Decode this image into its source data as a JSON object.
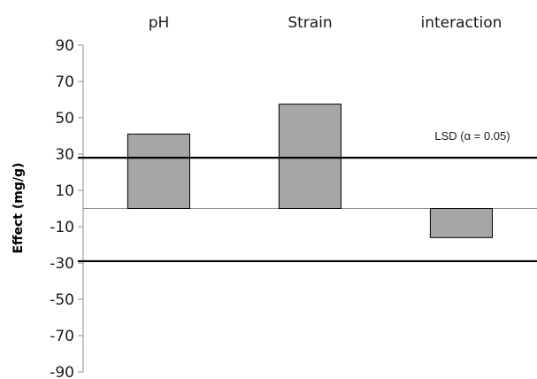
{
  "chart_data": {
    "type": "bar",
    "categories": [
      "pH",
      "Strain",
      "interaction"
    ],
    "values": [
      41,
      57.5,
      -16
    ],
    "ylabel": "Effect (mg/g)",
    "ylim": [
      -90,
      90
    ],
    "yticks": [
      "90",
      "70",
      "50",
      "30",
      "10",
      "-10",
      "-30",
      "-50",
      "-70",
      "-90"
    ],
    "reference_lines": [
      28,
      -29
    ],
    "annotation": "LSD (α = 0.05)",
    "bar_color": "#a6a6a6",
    "legend": "none",
    "grid": false
  }
}
